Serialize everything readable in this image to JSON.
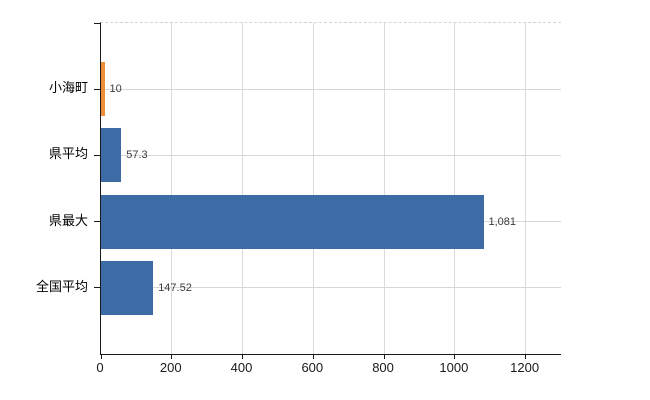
{
  "chart_data": {
    "type": "bar",
    "orientation": "horizontal",
    "title": "",
    "xlabel": "",
    "ylabel": "",
    "categories": [
      "小海町",
      "県平均",
      "県最大",
      "全国平均"
    ],
    "values": [
      10,
      57.3,
      1081,
      147.52
    ],
    "value_labels": [
      "10",
      "57.3",
      "1,081",
      "147.52"
    ],
    "bar_colors": [
      "#ee8e38",
      "#3d6ba6",
      "#3d6ba6",
      "#3d6ba6"
    ],
    "x_ticks": [
      0,
      200,
      400,
      600,
      800,
      1000,
      1200
    ],
    "x_tick_labels": [
      "0",
      "200",
      "400",
      "600",
      "800",
      "1000",
      "1200"
    ],
    "xlim": [
      0,
      1300
    ],
    "grid": true,
    "legend": false
  },
  "colors": {
    "axis": "#1a1a1a",
    "gridline": "#dadada",
    "category_text": "#000000",
    "value_text": "#3c3c3c",
    "background": "#ffffff",
    "bar_blue": "#3d6ba6",
    "bar_orange": "#ee8e38"
  }
}
